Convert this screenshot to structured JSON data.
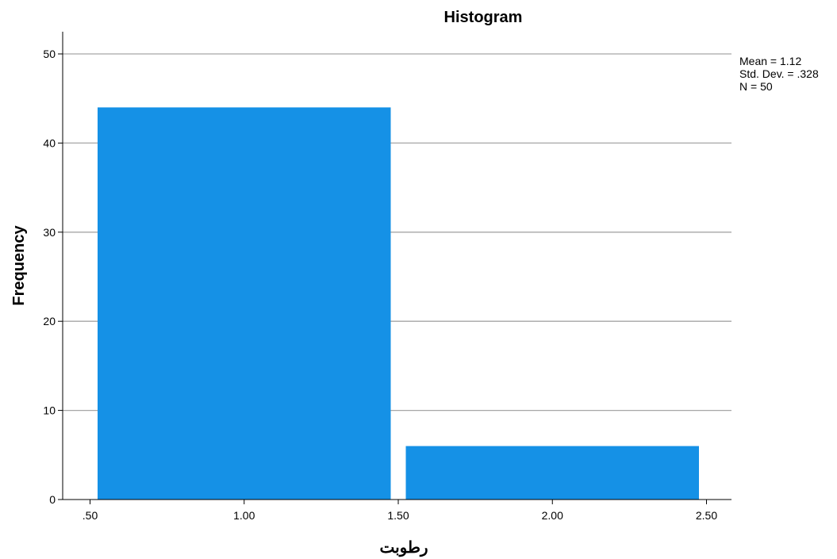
{
  "chart_data": {
    "type": "bar",
    "title": "Histogram",
    "xlabel": "رطوبت",
    "ylabel": "Frequency",
    "bins": [
      {
        "start": 0.5,
        "end": 1.5,
        "value": 44
      },
      {
        "start": 1.5,
        "end": 2.5,
        "value": 6
      }
    ],
    "x_ticks": [
      {
        "value": 0.5,
        "label": ".50"
      },
      {
        "value": 1.0,
        "label": "1.00"
      },
      {
        "value": 1.5,
        "label": "1.50"
      },
      {
        "value": 2.0,
        "label": "2.00"
      },
      {
        "value": 2.5,
        "label": "2.50"
      }
    ],
    "y_ticks": [
      0,
      10,
      20,
      30,
      40,
      50
    ],
    "xlim": [
      0.5,
      2.5
    ],
    "ylim": [
      0,
      50
    ],
    "grid": true,
    "bar_color": "#1591E6",
    "stats": {
      "mean": "Mean = 1.12",
      "std_dev": "Std. Dev. = .328",
      "n": "N = 50"
    }
  }
}
